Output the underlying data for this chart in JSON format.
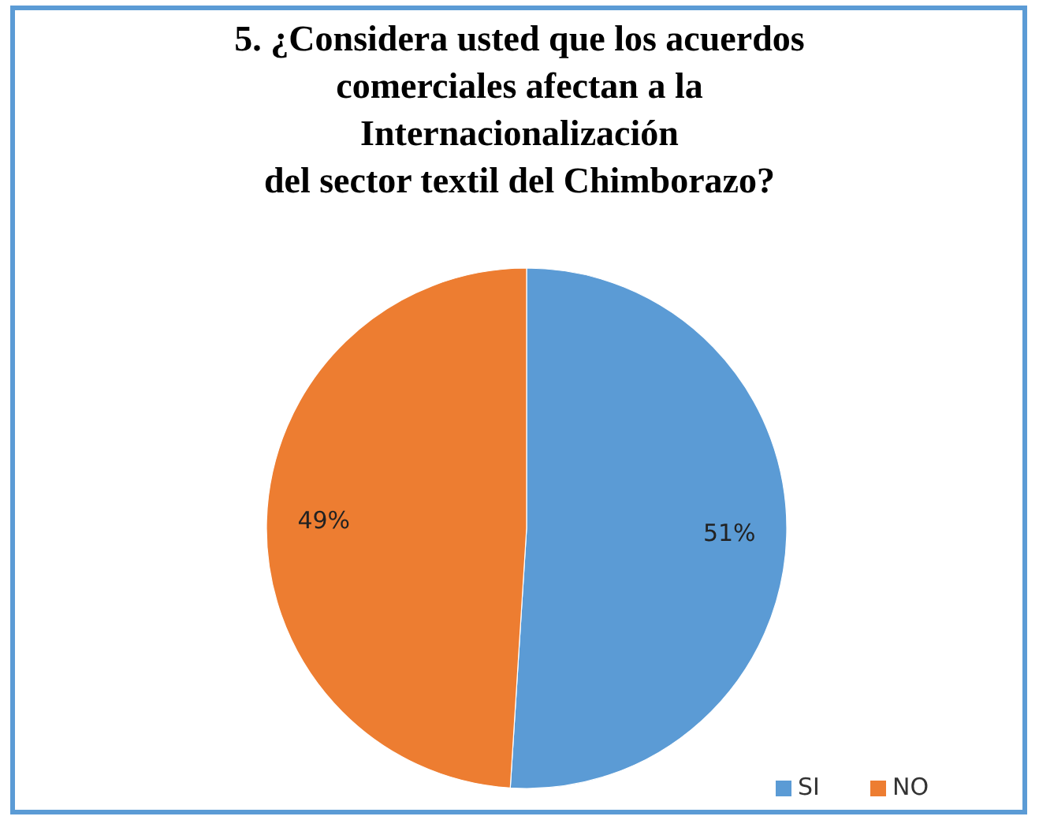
{
  "chart_data": {
    "type": "pie",
    "title": "5. ¿Considera usted que los acuerdos\ncomerciales afectan a la\nInternacionalización\ndel sector textil del Chimborazo?",
    "categories": [
      "SI",
      "NO"
    ],
    "values": [
      51,
      49
    ],
    "colors": [
      "#5b9bd5",
      "#ed7d31"
    ],
    "value_labels": [
      "51%",
      "49%"
    ],
    "legend": "bottom right"
  }
}
